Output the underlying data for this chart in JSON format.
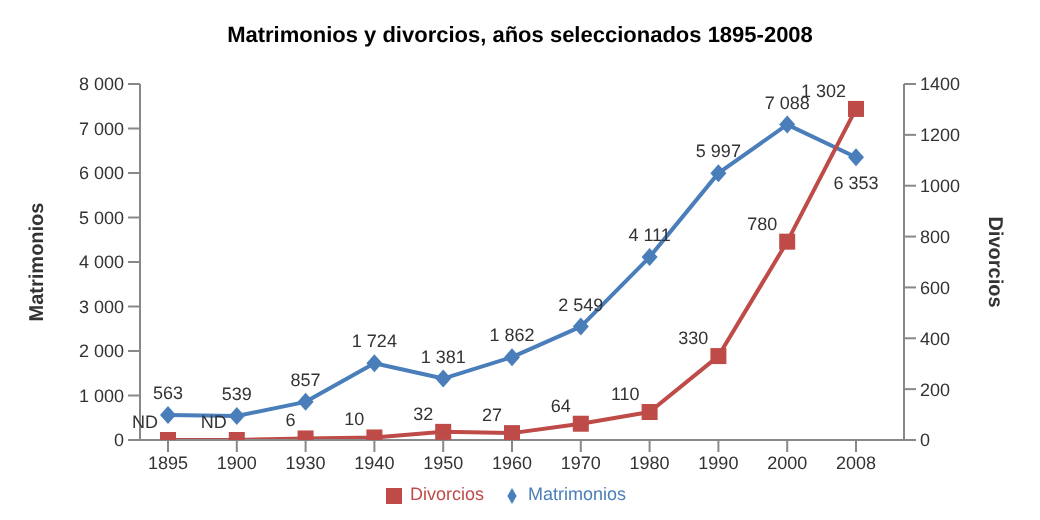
{
  "chart_data": {
    "type": "line",
    "title": "Matrimonios y divorcios, años seleccionados 1895-2008",
    "xlabel": null,
    "ylabel": "Matrimonios",
    "y2label": "Divorcios",
    "categories": [
      "1895",
      "1900",
      "1930",
      "1940",
      "1950",
      "1960",
      "1970",
      "1980",
      "1990",
      "2000",
      "2008"
    ],
    "series": [
      {
        "name": "Matrimonios",
        "color": "#4a7ebb",
        "marker": "diamond",
        "values": [
          563,
          539,
          857,
          1724,
          1381,
          1862,
          2549,
          4111,
          5997,
          7088,
          6353
        ],
        "value_labels": [
          "563",
          "539",
          "857",
          "1 724",
          "1 381",
          "1 862",
          "2 549",
          "4 111",
          "5 997",
          "7 088",
          "6 353"
        ]
      },
      {
        "name": "Divorcios",
        "color": "#be4b48",
        "marker": "square",
        "axis": "y2",
        "values": [
          0,
          0,
          6,
          10,
          32,
          27,
          64,
          110,
          330,
          780,
          1302
        ],
        "value_labels": [
          "ND",
          "ND",
          "6",
          "10",
          "32",
          "27",
          "64",
          "110",
          "330",
          "780",
          "1 302"
        ]
      }
    ],
    "ylim": [
      0,
      8000
    ],
    "yticks": [
      0,
      {
        "value": 1000,
        "label": "1 000"
      },
      {
        "value": 2000,
        "label": "2 000"
      },
      {
        "value": 3000,
        "label": "3 000"
      },
      {
        "value": 4000,
        "label": "4 000"
      },
      {
        "value": 5000,
        "label": "5 000"
      },
      {
        "value": 6000,
        "label": "6 000"
      },
      {
        "value": 7000,
        "label": "7 000"
      },
      {
        "value": 8000,
        "label": "8 000"
      }
    ],
    "y2lim": [
      0,
      1400
    ],
    "y2ticks": [
      0,
      200,
      400,
      600,
      800,
      1000,
      1200,
      1400
    ],
    "grid": false,
    "legend": "bottom"
  }
}
